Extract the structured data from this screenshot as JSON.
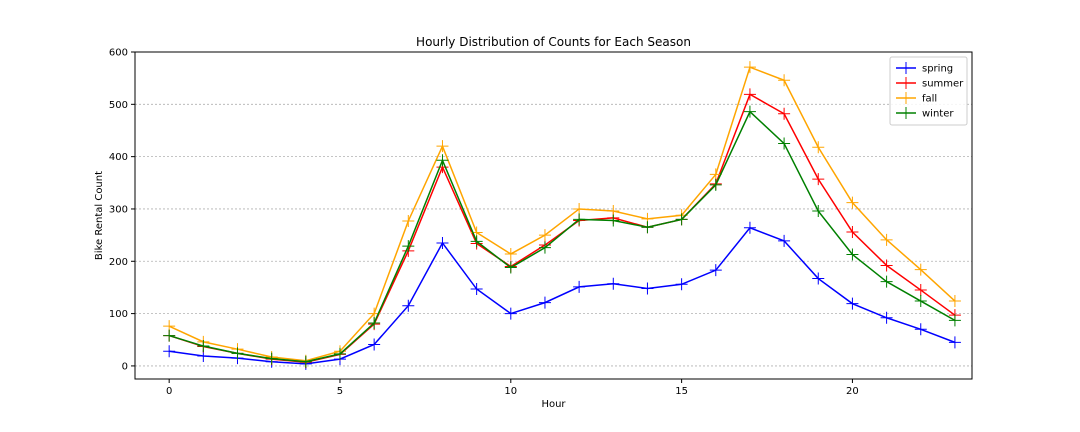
{
  "chart_data": {
    "type": "line",
    "title": "Hourly Distribution of Counts for Each Season",
    "xlabel": "Hour",
    "ylabel": "Bike Rental Count",
    "xlim": [
      -1,
      23.5
    ],
    "ylim": [
      -25,
      600
    ],
    "xticks": [
      0,
      5,
      10,
      15,
      20
    ],
    "yticks": [
      0,
      100,
      200,
      300,
      400,
      500,
      600
    ],
    "grid": "y",
    "legend_position": "top-right",
    "marker": "plus",
    "x": [
      0,
      1,
      2,
      3,
      4,
      5,
      6,
      7,
      8,
      9,
      10,
      11,
      12,
      13,
      14,
      15,
      16,
      17,
      18,
      19,
      20,
      21,
      22,
      23
    ],
    "series": [
      {
        "name": "spring",
        "color": "#0000ff",
        "values": [
          28,
          19,
          15,
          8,
          4,
          13,
          41,
          115,
          235,
          147,
          100,
          121,
          151,
          157,
          148,
          156,
          183,
          264,
          239,
          167,
          119,
          92,
          70,
          45
        ]
      },
      {
        "name": "summer",
        "color": "#ff0000",
        "values": [
          58,
          37,
          24,
          13,
          7,
          22,
          80,
          220,
          380,
          234,
          190,
          231,
          278,
          283,
          265,
          280,
          348,
          519,
          482,
          357,
          256,
          192,
          145,
          97
        ]
      },
      {
        "name": "fall",
        "color": "#ffa500",
        "values": [
          76,
          46,
          32,
          17,
          10,
          28,
          100,
          277,
          420,
          255,
          214,
          250,
          300,
          296,
          281,
          288,
          366,
          571,
          546,
          418,
          312,
          241,
          184,
          124
        ]
      },
      {
        "name": "winter",
        "color": "#008000",
        "values": [
          58,
          38,
          24,
          14,
          8,
          23,
          82,
          229,
          393,
          238,
          188,
          226,
          280,
          278,
          265,
          280,
          346,
          486,
          425,
          296,
          213,
          161,
          124,
          87
        ]
      }
    ]
  }
}
